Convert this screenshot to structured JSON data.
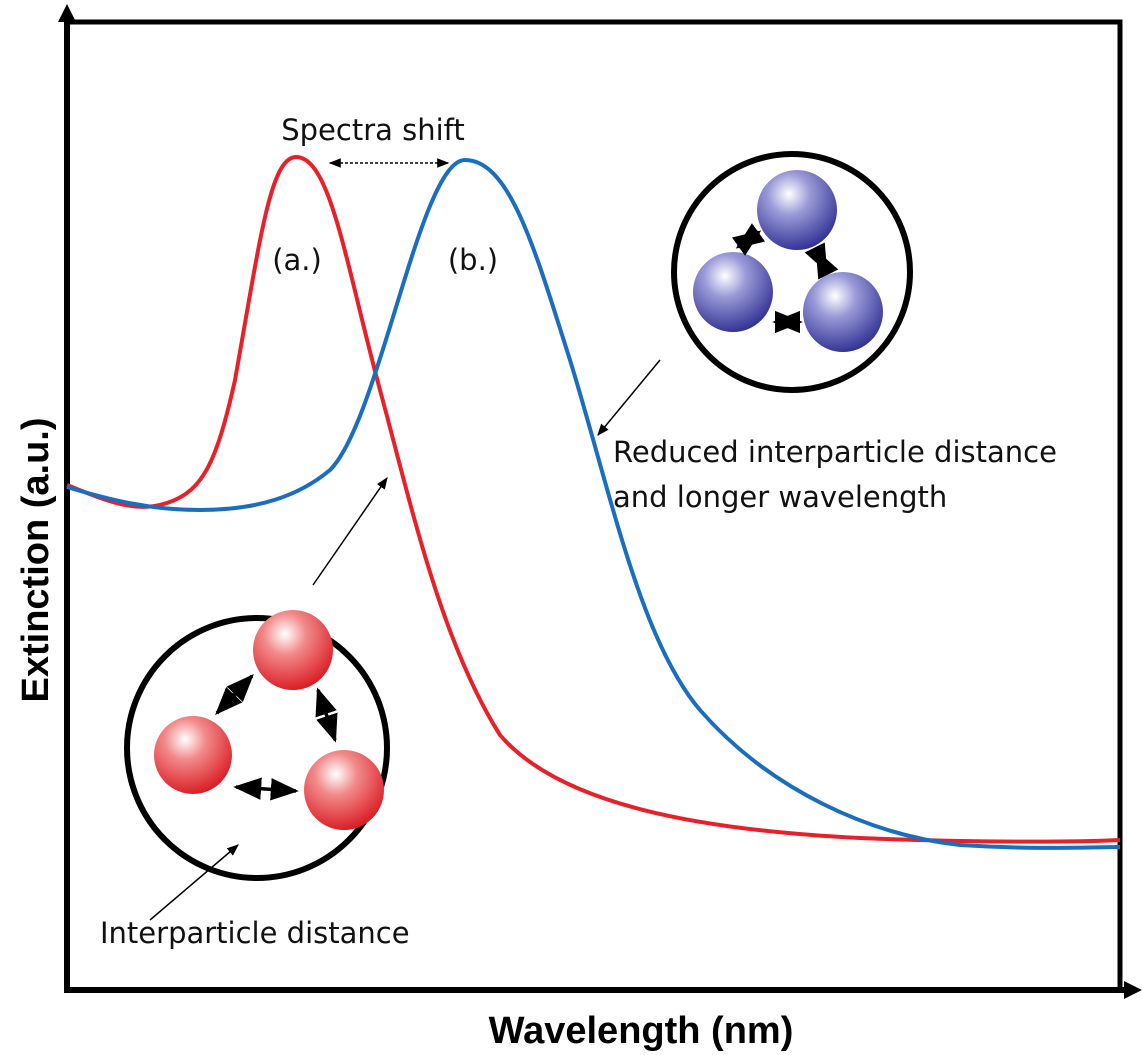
{
  "axes": {
    "x_label": "Wavelength (nm)",
    "y_label": "Extinction (a.u.)"
  },
  "annotations": {
    "shift": "Spectra shift",
    "peak_a": "(a.)",
    "peak_b": "(b.)",
    "reduced_line1": "Reduced interparticle distance",
    "reduced_line2": "and longer wavelength",
    "interparticle": "Interparticle distance"
  }
}
